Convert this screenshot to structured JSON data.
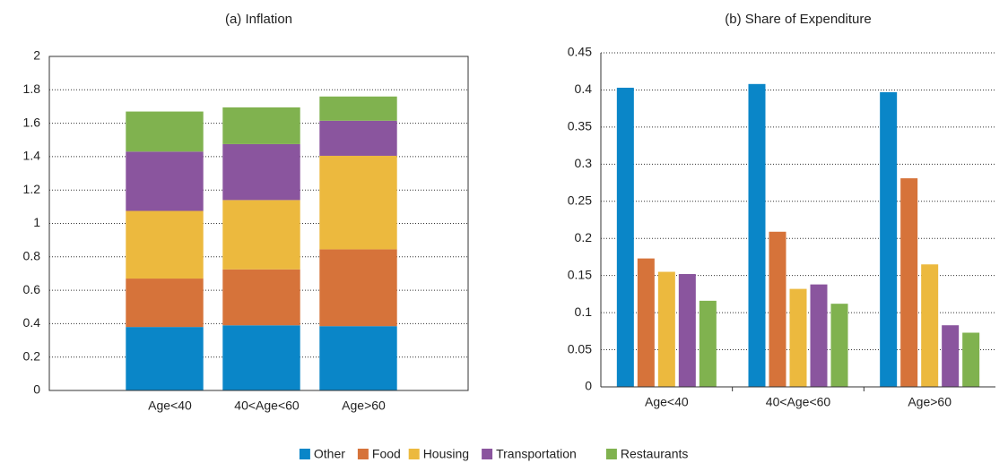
{
  "chart_data": [
    {
      "type": "stacked_bar",
      "title": "(a) Inflation",
      "categories": [
        "Age<40",
        "40<Age<60",
        "Age>60"
      ],
      "series": [
        {
          "name": "Other",
          "color": "#0a86c8",
          "values": [
            0.38,
            0.39,
            0.385
          ]
        },
        {
          "name": "Food",
          "color": "#d6733a",
          "values": [
            0.29,
            0.335,
            0.46
          ]
        },
        {
          "name": "Housing",
          "color": "#ecb93e",
          "values": [
            0.405,
            0.415,
            0.56
          ]
        },
        {
          "name": "Transportation",
          "color": "#8a559e",
          "values": [
            0.355,
            0.335,
            0.21
          ]
        },
        {
          "name": "Restaurants",
          "color": "#80b24f",
          "values": [
            0.24,
            0.22,
            0.145
          ]
        }
      ],
      "ylim": [
        0,
        2
      ],
      "yticks": [
        0,
        0.2,
        0.4,
        0.6,
        0.8,
        1,
        1.2,
        1.4,
        1.6,
        1.8,
        2
      ],
      "grid": true
    },
    {
      "type": "bar",
      "title": "(b) Share of Expenditure",
      "categories": [
        "Age<40",
        "40<Age<60",
        "Age>60"
      ],
      "series": [
        {
          "name": "Other",
          "color": "#0a86c8",
          "values": [
            0.403,
            0.408,
            0.397
          ]
        },
        {
          "name": "Food",
          "color": "#d6733a",
          "values": [
            0.173,
            0.209,
            0.281
          ]
        },
        {
          "name": "Housing",
          "color": "#ecb93e",
          "values": [
            0.155,
            0.132,
            0.165
          ]
        },
        {
          "name": "Transportation",
          "color": "#8a559e",
          "values": [
            0.152,
            0.138,
            0.083
          ]
        },
        {
          "name": "Restaurants",
          "color": "#80b24f",
          "values": [
            0.116,
            0.112,
            0.073
          ]
        }
      ],
      "ylim": [
        0,
        0.45
      ],
      "yticks": [
        0,
        0.05,
        0.1,
        0.15,
        0.2,
        0.25,
        0.3,
        0.35,
        0.4,
        0.45
      ],
      "grid": true
    }
  ]
}
